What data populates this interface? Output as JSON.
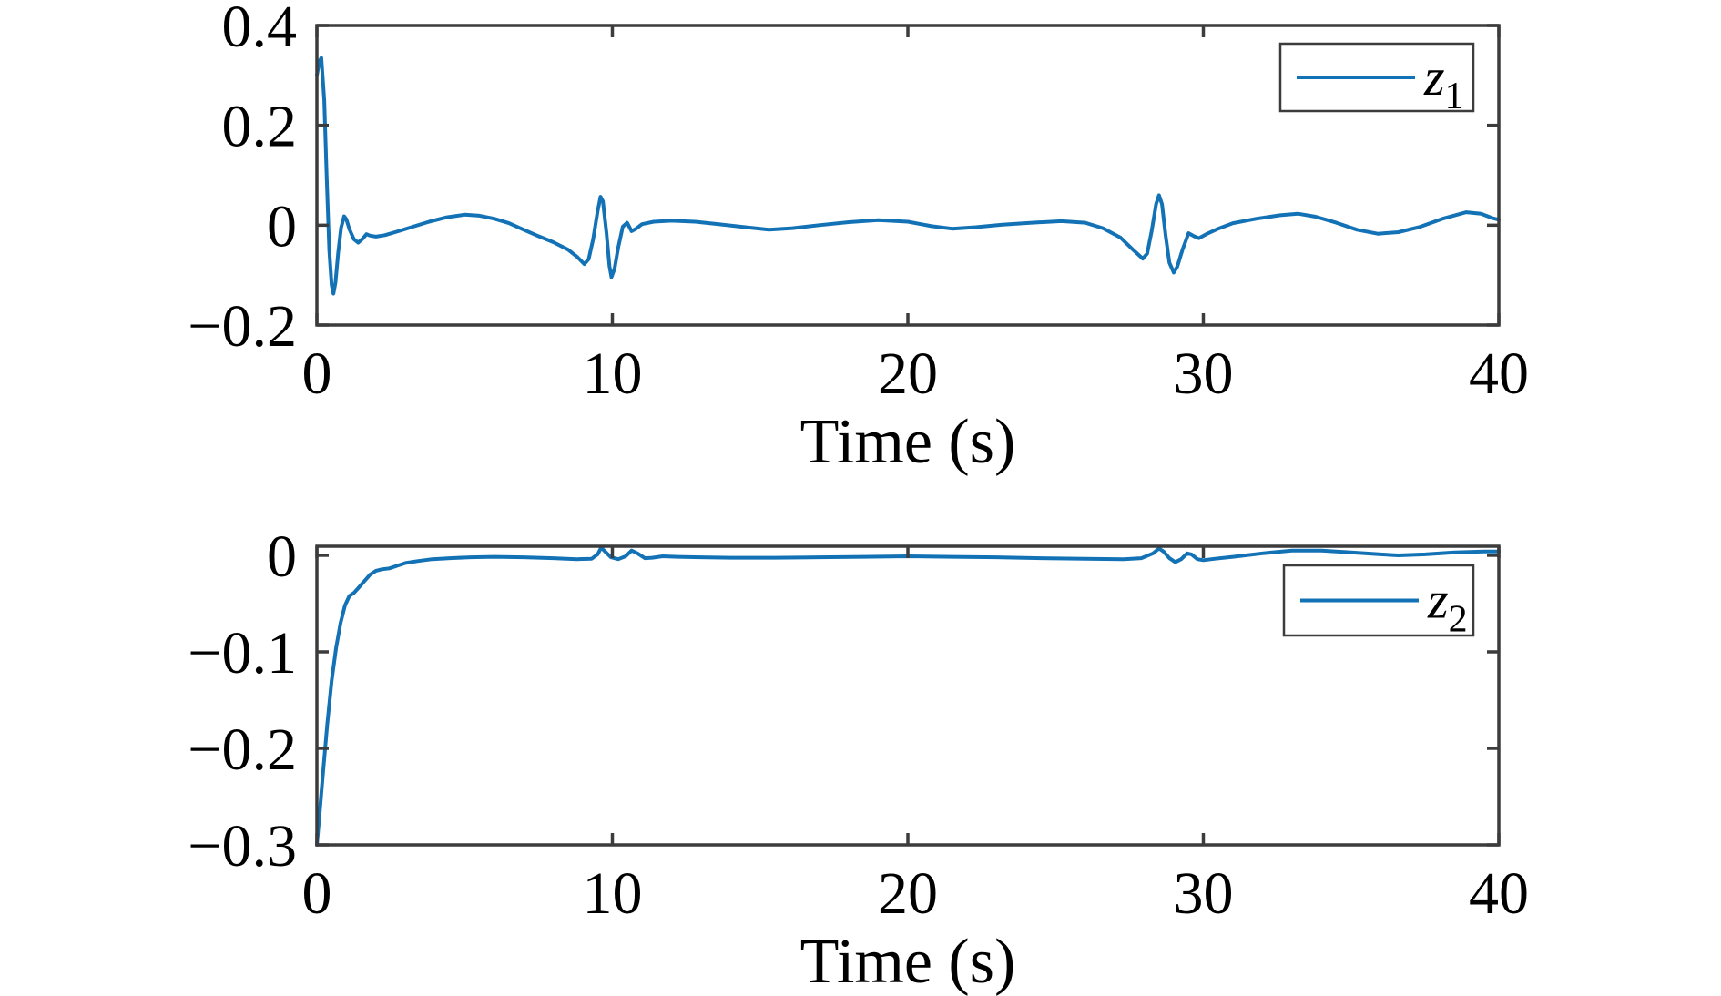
{
  "figure": {
    "background": "#ffffff",
    "axis_color": "#3c3c3c",
    "text_color": "#000000"
  },
  "chart_data": [
    {
      "type": "line",
      "title": "",
      "xlabel": "Time (s)",
      "ylabel": "",
      "xlim": [
        0,
        40
      ],
      "ylim": [
        -0.2,
        0.4
      ],
      "grid": false,
      "xticks": {
        "values": [
          0,
          10,
          20,
          30,
          40
        ],
        "labels": [
          "0",
          "10",
          "20",
          "30",
          "40"
        ]
      },
      "yticks": {
        "values": [
          0.4,
          0.2,
          0,
          -0.2
        ],
        "labels": [
          "0.4",
          "0.2",
          "0",
          "−0.2"
        ]
      },
      "legend": {
        "position": "northeast",
        "label_base": "z",
        "label_sub": "1"
      },
      "series": [
        {
          "name": "z1",
          "color": "#1272b5",
          "points": [
            [
              0,
              0.3
            ],
            [
              0.08,
              0.328
            ],
            [
              0.15,
              0.335
            ],
            [
              0.25,
              0.25
            ],
            [
              0.33,
              0.1
            ],
            [
              0.42,
              -0.05
            ],
            [
              0.5,
              -0.12
            ],
            [
              0.56,
              -0.137
            ],
            [
              0.63,
              -0.115
            ],
            [
              0.72,
              -0.055
            ],
            [
              0.82,
              -0.005
            ],
            [
              0.92,
              0.018
            ],
            [
              1.0,
              0.012
            ],
            [
              1.1,
              -0.008
            ],
            [
              1.25,
              -0.028
            ],
            [
              1.4,
              -0.035
            ],
            [
              1.55,
              -0.027
            ],
            [
              1.68,
              -0.018
            ],
            [
              1.8,
              -0.021
            ],
            [
              2.0,
              -0.023
            ],
            [
              2.3,
              -0.02
            ],
            [
              2.7,
              -0.013
            ],
            [
              3.2,
              -0.004
            ],
            [
              3.8,
              0.007
            ],
            [
              4.4,
              0.016
            ],
            [
              5.0,
              0.021
            ],
            [
              5.5,
              0.019
            ],
            [
              6.0,
              0.013
            ],
            [
              6.5,
              0.004
            ],
            [
              7.0,
              -0.009
            ],
            [
              7.5,
              -0.022
            ],
            [
              8.0,
              -0.034
            ],
            [
              8.5,
              -0.049
            ],
            [
              8.8,
              -0.063
            ],
            [
              9.05,
              -0.078
            ],
            [
              9.2,
              -0.068
            ],
            [
              9.35,
              -0.028
            ],
            [
              9.5,
              0.028
            ],
            [
              9.6,
              0.057
            ],
            [
              9.68,
              0.048
            ],
            [
              9.8,
              -0.015
            ],
            [
              9.9,
              -0.082
            ],
            [
              9.97,
              -0.104
            ],
            [
              10.07,
              -0.088
            ],
            [
              10.2,
              -0.044
            ],
            [
              10.35,
              -0.003
            ],
            [
              10.5,
              0.005
            ],
            [
              10.65,
              -0.012
            ],
            [
              10.8,
              -0.007
            ],
            [
              11.0,
              0.002
            ],
            [
              11.4,
              0.007
            ],
            [
              12.0,
              0.009
            ],
            [
              12.8,
              0.007
            ],
            [
              13.6,
              0.002
            ],
            [
              14.5,
              -0.004
            ],
            [
              15.3,
              -0.009
            ],
            [
              16.1,
              -0.006
            ],
            [
              17.0,
              0.0
            ],
            [
              18.0,
              0.006
            ],
            [
              19.0,
              0.01
            ],
            [
              20.0,
              0.007
            ],
            [
              20.8,
              -0.002
            ],
            [
              21.5,
              -0.007
            ],
            [
              22.3,
              -0.004
            ],
            [
              23.2,
              0.001
            ],
            [
              24.2,
              0.005
            ],
            [
              25.2,
              0.008
            ],
            [
              26.0,
              0.005
            ],
            [
              26.6,
              -0.006
            ],
            [
              27.2,
              -0.025
            ],
            [
              27.6,
              -0.048
            ],
            [
              27.95,
              -0.067
            ],
            [
              28.1,
              -0.057
            ],
            [
              28.25,
              -0.012
            ],
            [
              28.4,
              0.042
            ],
            [
              28.5,
              0.06
            ],
            [
              28.6,
              0.042
            ],
            [
              28.72,
              -0.02
            ],
            [
              28.85,
              -0.075
            ],
            [
              29.0,
              -0.095
            ],
            [
              29.12,
              -0.083
            ],
            [
              29.3,
              -0.048
            ],
            [
              29.5,
              -0.016
            ],
            [
              29.68,
              -0.022
            ],
            [
              29.85,
              -0.026
            ],
            [
              30.1,
              -0.018
            ],
            [
              30.5,
              -0.007
            ],
            [
              31.0,
              0.004
            ],
            [
              31.8,
              0.013
            ],
            [
              32.6,
              0.02
            ],
            [
              33.2,
              0.023
            ],
            [
              33.8,
              0.017
            ],
            [
              34.5,
              0.005
            ],
            [
              35.2,
              -0.009
            ],
            [
              35.9,
              -0.017
            ],
            [
              36.6,
              -0.014
            ],
            [
              37.3,
              -0.004
            ],
            [
              38.1,
              0.013
            ],
            [
              38.9,
              0.026
            ],
            [
              39.4,
              0.023
            ],
            [
              39.8,
              0.014
            ],
            [
              40,
              0.011
            ]
          ]
        }
      ]
    },
    {
      "type": "line",
      "title": "",
      "xlabel": "Time (s)",
      "ylabel": "",
      "xlim": [
        0,
        40
      ],
      "ylim": [
        -0.3,
        0.0094
      ],
      "grid": false,
      "xticks": {
        "values": [
          0,
          10,
          20,
          30,
          40
        ],
        "labels": [
          "0",
          "10",
          "20",
          "30",
          "40"
        ]
      },
      "yticks": {
        "values": [
          0,
          -0.1,
          -0.2,
          -0.3
        ],
        "labels": [
          "0",
          "−0.1",
          "−0.2",
          "−0.3"
        ]
      },
      "legend": {
        "position": "northeast",
        "label_base": "z",
        "label_sub": "2"
      },
      "series": [
        {
          "name": "z2",
          "color": "#1272b5",
          "points": [
            [
              0,
              -0.3
            ],
            [
              0.08,
              -0.272
            ],
            [
              0.2,
              -0.228
            ],
            [
              0.35,
              -0.175
            ],
            [
              0.5,
              -0.13
            ],
            [
              0.65,
              -0.096
            ],
            [
              0.8,
              -0.07
            ],
            [
              0.95,
              -0.052
            ],
            [
              1.1,
              -0.042
            ],
            [
              1.25,
              -0.039
            ],
            [
              1.4,
              -0.034
            ],
            [
              1.6,
              -0.027
            ],
            [
              1.8,
              -0.02
            ],
            [
              2.0,
              -0.016
            ],
            [
              2.2,
              -0.0145
            ],
            [
              2.45,
              -0.0135
            ],
            [
              2.7,
              -0.011
            ],
            [
              3.0,
              -0.008
            ],
            [
              3.4,
              -0.006
            ],
            [
              3.9,
              -0.004
            ],
            [
              4.5,
              -0.003
            ],
            [
              5.2,
              -0.002
            ],
            [
              6.0,
              -0.0015
            ],
            [
              7.0,
              -0.002
            ],
            [
              8.0,
              -0.003
            ],
            [
              8.8,
              -0.004
            ],
            [
              9.3,
              -0.0035
            ],
            [
              9.5,
              0.001
            ],
            [
              9.62,
              0.008
            ],
            [
              9.75,
              0.004
            ],
            [
              9.95,
              -0.002
            ],
            [
              10.2,
              -0.004
            ],
            [
              10.45,
              -0.001
            ],
            [
              10.65,
              0.005
            ],
            [
              10.85,
              0.002
            ],
            [
              11.1,
              -0.003
            ],
            [
              11.35,
              -0.0025
            ],
            [
              11.7,
              -0.001
            ],
            [
              12.2,
              -0.0015
            ],
            [
              13.0,
              -0.002
            ],
            [
              14.0,
              -0.0025
            ],
            [
              15.5,
              -0.0025
            ],
            [
              17.0,
              -0.002
            ],
            [
              18.5,
              -0.0015
            ],
            [
              20.0,
              -0.001
            ],
            [
              21.5,
              -0.0015
            ],
            [
              23.0,
              -0.002
            ],
            [
              24.5,
              -0.003
            ],
            [
              26.0,
              -0.0035
            ],
            [
              27.3,
              -0.004
            ],
            [
              27.9,
              -0.003
            ],
            [
              28.3,
              0.002
            ],
            [
              28.5,
              0.007
            ],
            [
              28.65,
              0.004
            ],
            [
              28.85,
              -0.003
            ],
            [
              29.05,
              -0.007
            ],
            [
              29.25,
              -0.004
            ],
            [
              29.45,
              0.002
            ],
            [
              29.6,
              0.001
            ],
            [
              29.8,
              -0.004
            ],
            [
              30.0,
              -0.005
            ],
            [
              30.4,
              -0.0035
            ],
            [
              31.0,
              -0.0015
            ],
            [
              32.0,
              0.002
            ],
            [
              33.0,
              0.005
            ],
            [
              34.0,
              0.005
            ],
            [
              35.0,
              0.003
            ],
            [
              36.0,
              0.001
            ],
            [
              36.6,
              0.0
            ],
            [
              37.5,
              0.001
            ],
            [
              38.5,
              0.003
            ],
            [
              39.5,
              0.004
            ],
            [
              40,
              0.004
            ]
          ]
        }
      ]
    }
  ]
}
